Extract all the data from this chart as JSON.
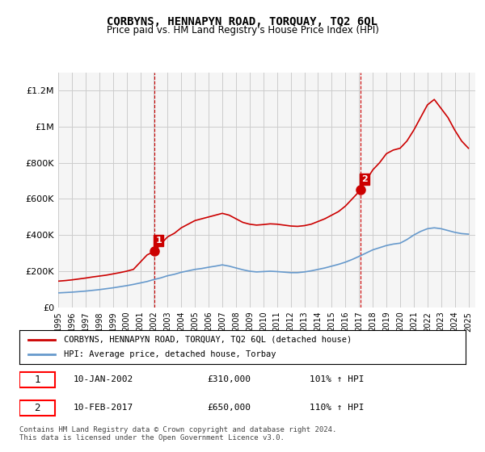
{
  "title": "CORBYNS, HENNAPYN ROAD, TORQUAY, TQ2 6QL",
  "subtitle": "Price paid vs. HM Land Registry's House Price Index (HPI)",
  "legend_label_red": "CORBYNS, HENNAPYN ROAD, TORQUAY, TQ2 6QL (detached house)",
  "legend_label_blue": "HPI: Average price, detached house, Torbay",
  "annotation1_label": "1",
  "annotation1_date": "10-JAN-2002",
  "annotation1_price": "£310,000",
  "annotation1_hpi": "101% ↑ HPI",
  "annotation2_label": "2",
  "annotation2_date": "10-FEB-2017",
  "annotation2_price": "£650,000",
  "annotation2_hpi": "110% ↑ HPI",
  "footer": "Contains HM Land Registry data © Crown copyright and database right 2024.\nThis data is licensed under the Open Government Licence v3.0.",
  "ylim": [
    0,
    1300000
  ],
  "red_color": "#cc0000",
  "blue_color": "#6699cc",
  "grid_color": "#cccccc",
  "background_color": "#ffffff",
  "plot_bg_color": "#f5f5f5",
  "sale1_x": 2002.04,
  "sale1_y": 310000,
  "sale2_x": 2017.12,
  "sale2_y": 650000,
  "red_x": [
    1995.0,
    1995.5,
    1996.0,
    1996.5,
    1997.0,
    1997.5,
    1998.0,
    1998.5,
    1999.0,
    1999.5,
    2000.0,
    2000.5,
    2001.0,
    2001.5,
    2002.04,
    2002.5,
    2003.0,
    2003.5,
    2004.0,
    2004.5,
    2005.0,
    2005.5,
    2006.0,
    2006.5,
    2007.0,
    2007.5,
    2008.0,
    2008.5,
    2009.0,
    2009.5,
    2010.0,
    2010.5,
    2011.0,
    2011.5,
    2012.0,
    2012.5,
    2013.0,
    2013.5,
    2014.0,
    2014.5,
    2015.0,
    2015.5,
    2016.0,
    2016.5,
    2017.12,
    2017.5,
    2018.0,
    2018.5,
    2019.0,
    2019.5,
    2020.0,
    2020.5,
    2021.0,
    2021.5,
    2022.0,
    2022.5,
    2023.0,
    2023.5,
    2024.0,
    2024.5,
    2025.0
  ],
  "red_y": [
    145000,
    148000,
    152000,
    157000,
    162000,
    168000,
    173000,
    178000,
    185000,
    192000,
    200000,
    210000,
    250000,
    290000,
    310000,
    350000,
    390000,
    410000,
    440000,
    460000,
    480000,
    490000,
    500000,
    510000,
    520000,
    510000,
    490000,
    470000,
    460000,
    455000,
    458000,
    462000,
    460000,
    455000,
    450000,
    448000,
    452000,
    460000,
    475000,
    490000,
    510000,
    530000,
    560000,
    600000,
    650000,
    700000,
    760000,
    800000,
    850000,
    870000,
    880000,
    920000,
    980000,
    1050000,
    1120000,
    1150000,
    1100000,
    1050000,
    980000,
    920000,
    880000
  ],
  "blue_x": [
    1995.0,
    1995.5,
    1996.0,
    1996.5,
    1997.0,
    1997.5,
    1998.0,
    1998.5,
    1999.0,
    1999.5,
    2000.0,
    2000.5,
    2001.0,
    2001.5,
    2002.0,
    2002.5,
    2003.0,
    2003.5,
    2004.0,
    2004.5,
    2005.0,
    2005.5,
    2006.0,
    2006.5,
    2007.0,
    2007.5,
    2008.0,
    2008.5,
    2009.0,
    2009.5,
    2010.0,
    2010.5,
    2011.0,
    2011.5,
    2012.0,
    2012.5,
    2013.0,
    2013.5,
    2014.0,
    2014.5,
    2015.0,
    2015.5,
    2016.0,
    2016.5,
    2017.0,
    2017.5,
    2018.0,
    2018.5,
    2019.0,
    2019.5,
    2020.0,
    2020.5,
    2021.0,
    2021.5,
    2022.0,
    2022.5,
    2023.0,
    2023.5,
    2024.0,
    2024.5,
    2025.0
  ],
  "blue_y": [
    80000,
    82000,
    84000,
    87000,
    90000,
    94000,
    98000,
    103000,
    108000,
    114000,
    120000,
    127000,
    135000,
    143000,
    154000,
    163000,
    175000,
    183000,
    194000,
    202000,
    210000,
    215000,
    222000,
    228000,
    235000,
    228000,
    218000,
    208000,
    200000,
    196000,
    198000,
    200000,
    198000,
    195000,
    192000,
    192000,
    196000,
    202000,
    210000,
    218000,
    228000,
    238000,
    250000,
    265000,
    282000,
    300000,
    318000,
    330000,
    342000,
    350000,
    355000,
    375000,
    400000,
    420000,
    435000,
    440000,
    435000,
    425000,
    415000,
    408000,
    405000
  ],
  "xtick_years": [
    1995,
    1996,
    1997,
    1998,
    1999,
    2000,
    2001,
    2002,
    2003,
    2004,
    2005,
    2006,
    2007,
    2008,
    2009,
    2010,
    2011,
    2012,
    2013,
    2014,
    2015,
    2016,
    2017,
    2018,
    2019,
    2020,
    2021,
    2022,
    2023,
    2024,
    2025
  ]
}
